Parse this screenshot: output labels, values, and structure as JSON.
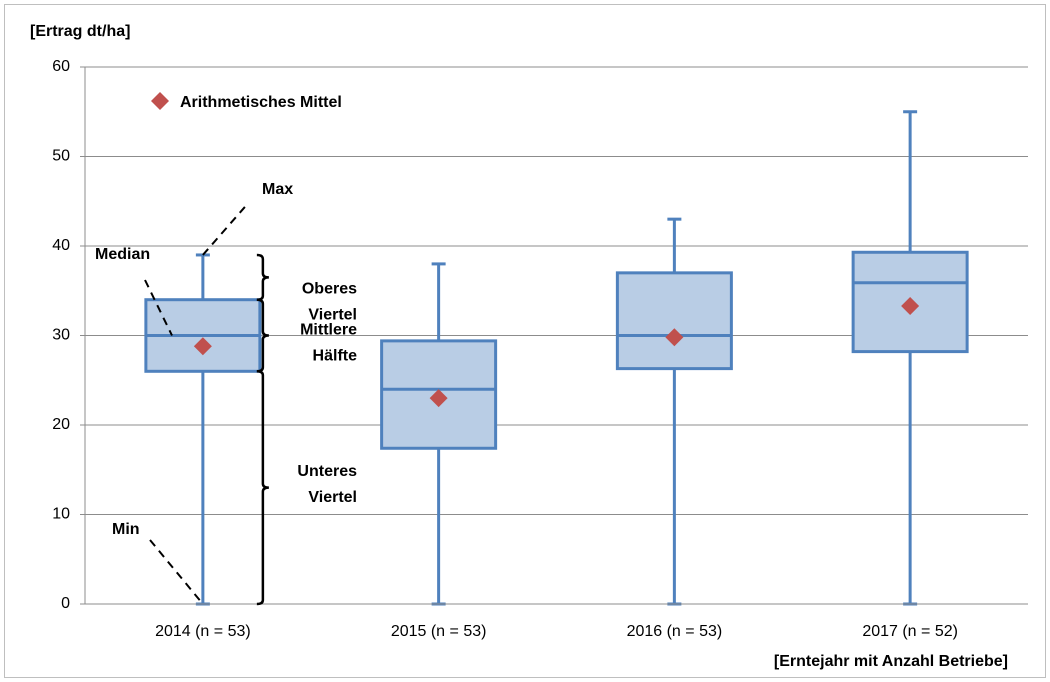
{
  "chart_data": {
    "type": "box",
    "y_label": "[Ertrag dt/ha]",
    "x_label": "[Erntejahr mit Anzahl Betriebe]",
    "categories": [
      "2014 (n = 53)",
      "2015 (n = 53)",
      "2016 (n = 53)",
      "2017 (n = 52)"
    ],
    "min": [
      0,
      0,
      0,
      0
    ],
    "q1": [
      26,
      17.4,
      26.3,
      28.2
    ],
    "median": [
      30,
      24,
      30,
      35.9
    ],
    "q3": [
      34,
      29.4,
      37,
      39.3
    ],
    "max": [
      39,
      38,
      43,
      55
    ],
    "mean": [
      28.8,
      23,
      29.8,
      33.3
    ],
    "box_color": "#b9cde5",
    "line_color": "#4f81bd",
    "mean_name": "Arithmetisches Mittel",
    "mean_color": "#c0504d",
    "ylim": [
      0,
      60
    ],
    "yticks": [
      0,
      10,
      20,
      30,
      40,
      50,
      60
    ],
    "grid": true,
    "legend": "top-left",
    "annotations": {
      "max": [
        "Max"
      ],
      "median": [
        "Median"
      ],
      "min": [
        "Min"
      ],
      "upper": [
        "Oberes",
        "Viertel"
      ],
      "middle": [
        "Mittlere",
        "Hälfte"
      ],
      "lower": [
        "Unteres",
        "Viertel"
      ]
    }
  }
}
